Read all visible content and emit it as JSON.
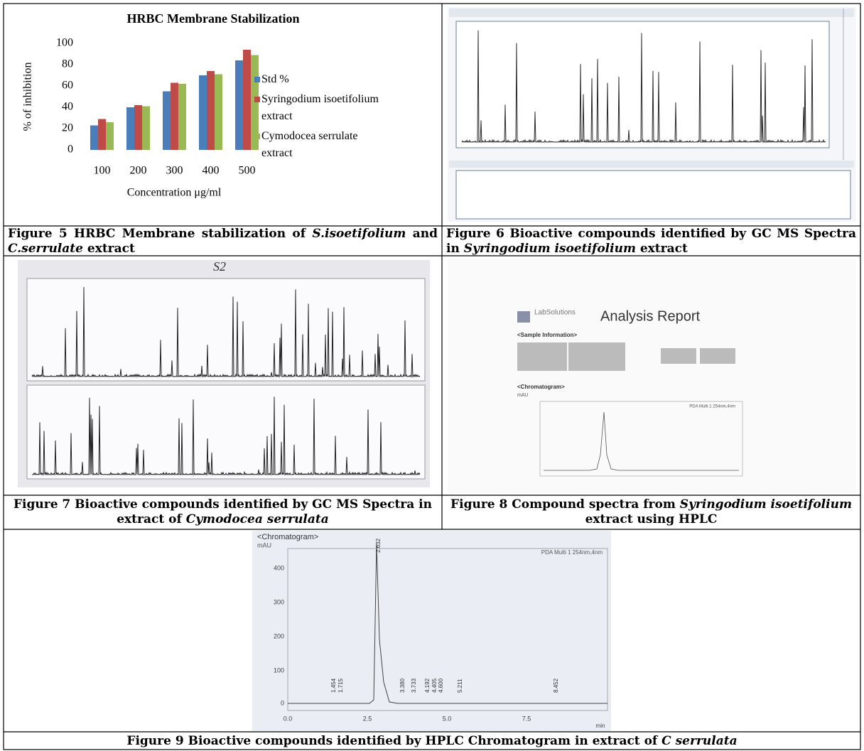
{
  "chart_data": {
    "type": "bar",
    "title": "HRBC Membrane Stabilization",
    "y_label": "% of inhibition",
    "x_label": "Concentration μg/ml",
    "categories": [
      "100",
      "200",
      "300",
      "400",
      "500"
    ],
    "series": [
      {
        "name": "Std %",
        "color": "#4a7ebb",
        "values": [
          23,
          40,
          55,
          70,
          84
        ]
      },
      {
        "name": "Syringodium isoetifolium extract",
        "color": "#be4b48",
        "values": [
          29,
          42,
          63,
          74,
          94
        ]
      },
      {
        "name": "Cymodocea serrulate extract",
        "color": "#98b954",
        "values": [
          26,
          41,
          62,
          71,
          89
        ]
      }
    ],
    "ylim": [
      0,
      100
    ],
    "yticks": [
      0,
      20,
      40,
      60,
      80,
      100
    ],
    "grid": false,
    "legend": "right"
  },
  "captions": {
    "figure5": [
      "Figure 5 HRBC Membrane stabilization of ",
      "S.isoetifolium",
      " and ",
      "C.serrulate",
      " extract"
    ],
    "figure6": [
      "Figure 6 Bioactive compounds identified by GC MS Spectra in ",
      "Syringodium isoetifolium",
      " extract"
    ],
    "figure7": [
      "Figure 7 Bioactive compounds identified by GC MS Spectra in extract of ",
      "Cymodocea serrulata"
    ],
    "figure8": [
      "Figure 8 Compound spectra from ",
      "Syringodium isoetifolium",
      " extract using HPLC"
    ],
    "figure9": [
      "Figure 9 Bioactive compounds identified by HPLC Chromatogram in extract of ",
      "C serrulata"
    ]
  },
  "figure7_note": "S2",
  "figure8": {
    "brand": "LabSolutions",
    "title": "Analysis Report",
    "section1": "<Sample Information>",
    "section2": "<Chromatogram>",
    "unit": "mAU",
    "detector": "PDA Multi 1 254nm,4nm"
  },
  "figure9": {
    "header": "<Chromatogram>",
    "unit": "mAU",
    "detector": "PDA Multi 1 254nm,4nm",
    "yticks": [
      "400",
      "300",
      "200",
      "100",
      "0"
    ],
    "xticks": [
      "0.0",
      "2.5",
      "5.0",
      "7.5"
    ],
    "xunit": "min",
    "peaks": [
      "1.454",
      "1.715",
      "2.632",
      "3.380",
      "3.733",
      "4.192",
      "4.405",
      "4.600",
      "5.211",
      "8.452"
    ]
  }
}
